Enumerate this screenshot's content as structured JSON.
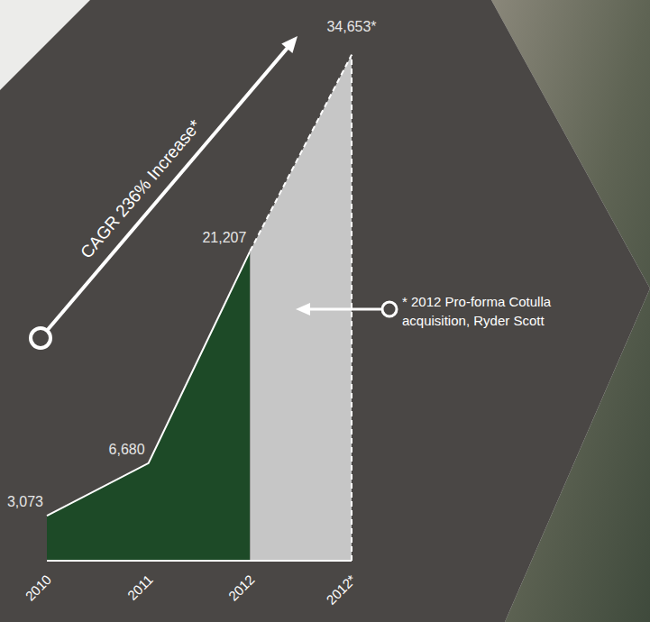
{
  "chart_data": {
    "type": "area",
    "categories": [
      "2010",
      "2011",
      "2012",
      "2012*"
    ],
    "values": [
      3073,
      6680,
      21207,
      34653
    ],
    "value_labels": [
      "3,073",
      "6,680",
      "21,207",
      "34,653*"
    ],
    "colors": [
      "#1d4a27",
      "#1d4a27",
      "#1d4a27",
      "#c6c6c6"
    ],
    "ylim": [
      0,
      36000
    ],
    "tick_labels": "x",
    "data_labels": true,
    "annotations": [
      {
        "text": "CAGR 236% Increase*"
      },
      {
        "text": "* 2012 Pro-forma Cotulla acquisition, Ryder Scott"
      }
    ]
  }
}
